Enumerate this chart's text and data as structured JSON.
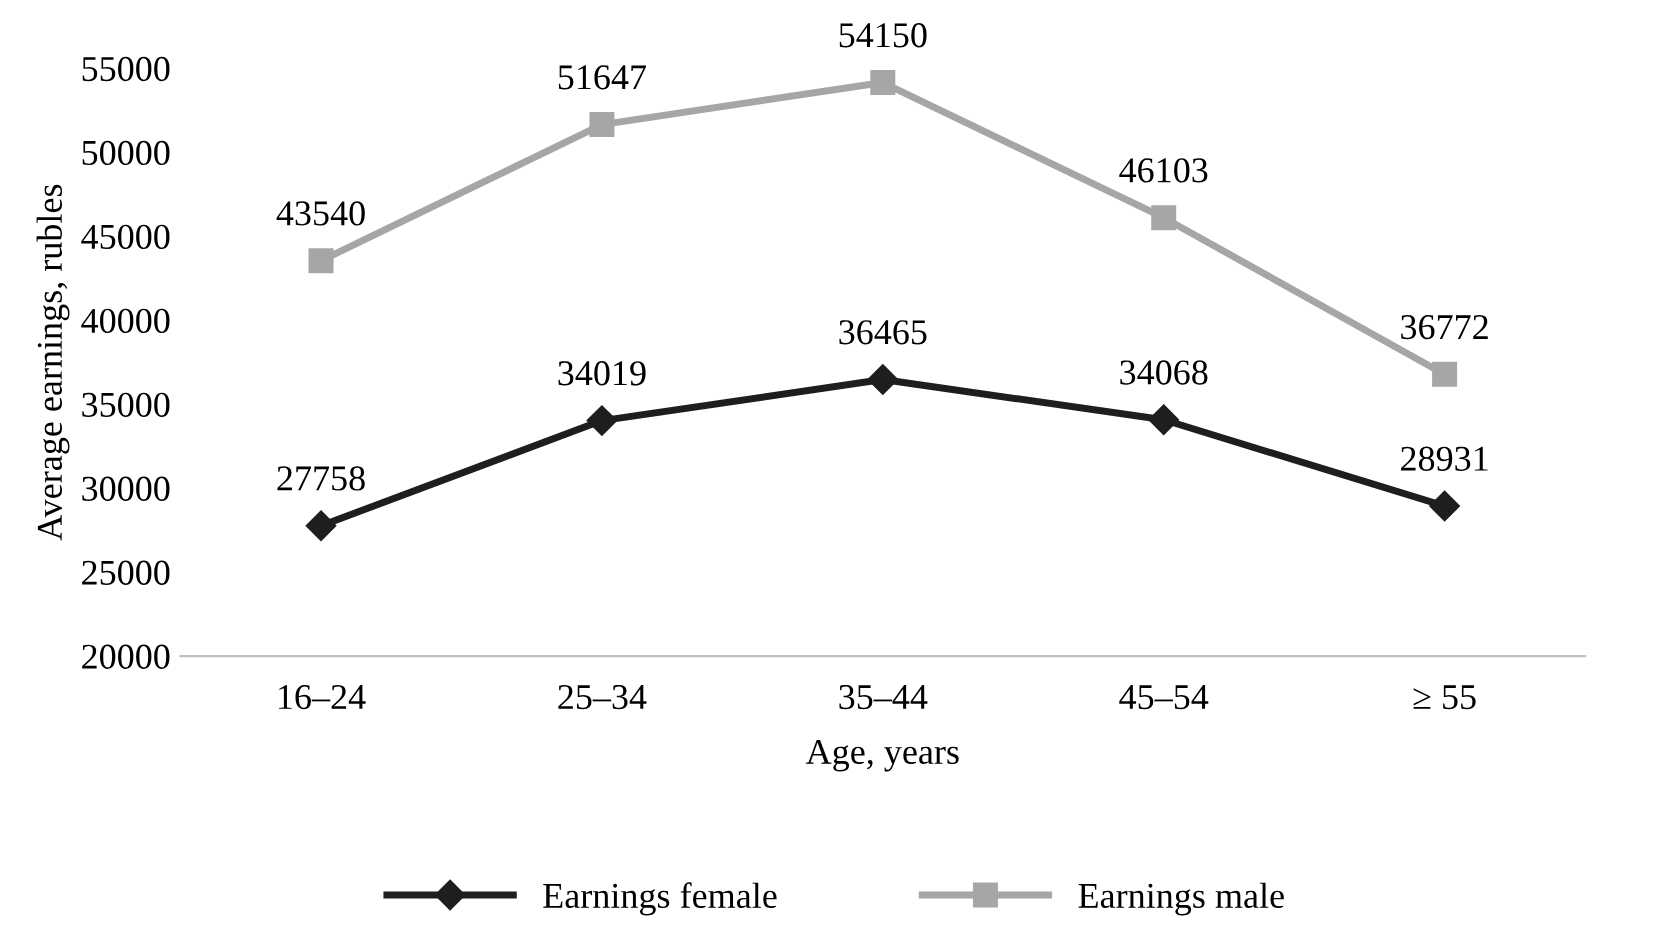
{
  "chart_data": {
    "type": "line",
    "xlabel": "Age, years",
    "ylabel": "Average earnings, rubles",
    "categories": [
      "16–24",
      "25–34",
      "35–44",
      "45–54",
      "≥ 55"
    ],
    "series": [
      {
        "name": "Earnings female",
        "color": "#1e1e1e",
        "marker": "diamond",
        "values": [
          27758,
          34019,
          36465,
          34068,
          28931
        ]
      },
      {
        "name": "Earnings male",
        "color": "#a6a6a6",
        "marker": "square",
        "values": [
          43540,
          51647,
          54150,
          46103,
          36772
        ]
      }
    ],
    "ylim": [
      20000,
      55000
    ],
    "yticks": [
      20000,
      25000,
      30000,
      35000,
      40000,
      45000,
      50000,
      55000
    ],
    "data_labels": true,
    "grid": false,
    "legend": "bottom",
    "line_style": "solid"
  }
}
